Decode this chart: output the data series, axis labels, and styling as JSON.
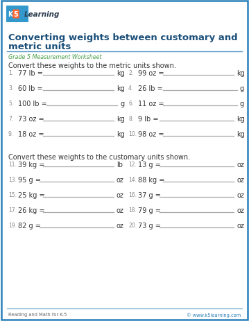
{
  "title_line1": "Converting weights between customary and",
  "title_line2": "metric units",
  "subtitle": "Grade 5 Measurement Worksheet",
  "section1_header": "Convert these weights to the metric units shown.",
  "section2_header": "Convert these weights to the customary units shown.",
  "footer_left": "Reading and Math for K-5",
  "footer_right": "© www.k5learning.com",
  "title_color": "#1a4f7a",
  "subtitle_color": "#4a9e4a",
  "body_color": "#333333",
  "num_color": "#888888",
  "line_color": "#aaaaaa",
  "border_color": "#2980b9",
  "bg_color": "#ffffff",
  "logo_k5_bg": "#e84545",
  "logo_text_color": "#2c3e50",
  "section1_problems_col1": [
    [
      "1.",
      "77 lb =",
      "kg"
    ],
    [
      "3.",
      "60 lb =",
      "kg"
    ],
    [
      "5.",
      "100 lb =",
      "g"
    ],
    [
      "7.",
      "73 oz =",
      "kg"
    ],
    [
      "9.",
      "18 oz =",
      "kg"
    ]
  ],
  "section1_problems_col2": [
    [
      "2.",
      "99 oz =",
      "kg"
    ],
    [
      "4.",
      "26 lb =",
      "g"
    ],
    [
      "6.",
      "11 oz =",
      "g"
    ],
    [
      "8.",
      "9 lb =",
      "kg"
    ],
    [
      "10.",
      "98 oz =",
      "kg"
    ]
  ],
  "section2_problems_col1": [
    [
      "11.",
      "39 kg =",
      "lb"
    ],
    [
      "13.",
      "95 g =",
      "oz"
    ],
    [
      "15.",
      "25 kg =",
      "oz"
    ],
    [
      "17.",
      "26 kg =",
      "oz"
    ],
    [
      "19.",
      "82 g =",
      "oz"
    ]
  ],
  "section2_problems_col2": [
    [
      "12.",
      "13 g =",
      "oz"
    ],
    [
      "14.",
      "88 kg =",
      "oz"
    ],
    [
      "16.",
      "37 g =",
      "oz"
    ],
    [
      "18.",
      "79 g =",
      "oz"
    ],
    [
      "20.",
      "73 g =",
      "oz"
    ]
  ]
}
